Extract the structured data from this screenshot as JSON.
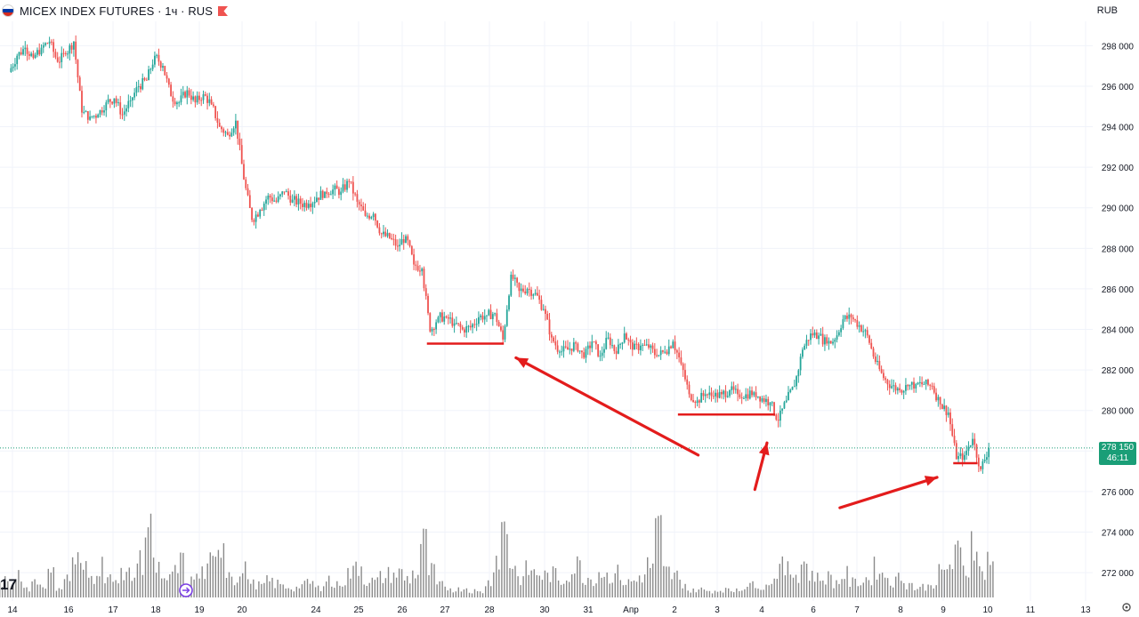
{
  "header": {
    "title": "MICEX INDEX FUTURES · 1ч · RUS",
    "currency": "RUB"
  },
  "price_tag": {
    "price": "278 150",
    "countdown": "46:11"
  },
  "logo_text": "17",
  "settings_icon": "gear-icon",
  "colors": {
    "up": "#26a69a",
    "down": "#ef5350",
    "volume": "#8a8a8a",
    "annotation": "#e31c1c",
    "last_price": "#1a9e77"
  },
  "chart_data": {
    "type": "candlestick",
    "title": "MICEX INDEX FUTURES · 1ч · RUS",
    "y_axis": {
      "range": [
        270600,
        299200
      ],
      "ticks": [
        272000,
        274000,
        276000,
        278000,
        280000,
        282000,
        284000,
        286000,
        288000,
        290000,
        292000,
        294000,
        296000,
        298000
      ],
      "tick_labels": [
        "272 000",
        "274 000",
        "276 000",
        "278 000",
        "280 000",
        "282 000",
        "284 000",
        "286 000",
        "288 000",
        "290 000",
        "292 000",
        "294 000",
        "296 000",
        "298 000"
      ]
    },
    "x_axis": {
      "labels": [
        "14",
        "16",
        "17",
        "18",
        "19",
        "20",
        "24",
        "25",
        "26",
        "27",
        "28",
        "30",
        "31",
        "Апр",
        "2",
        "3",
        "4",
        "6",
        "7",
        "8",
        "9",
        "10",
        "11",
        "13"
      ]
    },
    "last_price": 278150,
    "grid": true,
    "price_path": [
      [
        0,
        296700
      ],
      [
        2,
        297500
      ],
      [
        3,
        297900
      ],
      [
        4,
        297400
      ],
      [
        5,
        297900
      ],
      [
        6,
        298200
      ],
      [
        7,
        297200
      ],
      [
        8,
        297600
      ],
      [
        9,
        298200
      ],
      [
        10,
        294700
      ],
      [
        11,
        294500
      ],
      [
        12,
        294600
      ],
      [
        13,
        295200
      ],
      [
        14,
        295400
      ],
      [
        15,
        294600
      ],
      [
        16,
        295300
      ],
      [
        17,
        296000
      ],
      [
        18,
        296300
      ],
      [
        19,
        297500
      ],
      [
        20,
        297000
      ],
      [
        21,
        295500
      ],
      [
        22,
        295200
      ],
      [
        23,
        295800
      ],
      [
        24,
        295200
      ],
      [
        25,
        295600
      ],
      [
        26,
        295100
      ],
      [
        27,
        294000
      ],
      [
        28,
        293600
      ],
      [
        29,
        294300
      ],
      [
        30,
        291400
      ],
      [
        31,
        289400
      ],
      [
        32,
        289900
      ],
      [
        33,
        290600
      ],
      [
        34,
        290300
      ],
      [
        35,
        290800
      ],
      [
        36,
        290400
      ],
      [
        37,
        290200
      ],
      [
        38,
        290200
      ],
      [
        39,
        290500
      ],
      [
        40,
        290800
      ],
      [
        41,
        290900
      ],
      [
        42,
        290800
      ],
      [
        43,
        291300
      ],
      [
        44,
        290300
      ],
      [
        45,
        289600
      ],
      [
        46,
        289700
      ],
      [
        47,
        288700
      ],
      [
        48,
        288500
      ],
      [
        49,
        288100
      ],
      [
        50,
        288600
      ],
      [
        51,
        287200
      ],
      [
        52,
        287000
      ],
      [
        53,
        283900
      ],
      [
        54,
        284600
      ],
      [
        55,
        284600
      ],
      [
        56,
        284300
      ],
      [
        57,
        284000
      ],
      [
        58,
        284100
      ],
      [
        59,
        284600
      ],
      [
        60,
        284700
      ],
      [
        61,
        284800
      ],
      [
        62,
        283500
      ],
      [
        63,
        286700
      ],
      [
        64,
        285900
      ],
      [
        65,
        286000
      ],
      [
        66,
        285800
      ],
      [
        67,
        285000
      ],
      [
        68,
        283600
      ],
      [
        69,
        282900
      ],
      [
        70,
        283000
      ],
      [
        71,
        283300
      ],
      [
        72,
        282600
      ],
      [
        73,
        283400
      ],
      [
        74,
        282700
      ],
      [
        75,
        283600
      ],
      [
        76,
        282800
      ],
      [
        77,
        283800
      ],
      [
        78,
        283000
      ],
      [
        79,
        283200
      ],
      [
        80,
        283100
      ],
      [
        81,
        282700
      ],
      [
        82,
        282900
      ],
      [
        83,
        283400
      ],
      [
        84,
        282300
      ],
      [
        85,
        280800
      ],
      [
        86,
        280500
      ],
      [
        87,
        280800
      ],
      [
        88,
        280700
      ],
      [
        89,
        280800
      ],
      [
        90,
        281000
      ],
      [
        91,
        280800
      ],
      [
        92,
        280800
      ],
      [
        93,
        280900
      ],
      [
        94,
        280600
      ],
      [
        95,
        280400
      ],
      [
        96,
        279500
      ],
      [
        97,
        280500
      ],
      [
        98,
        281200
      ],
      [
        99,
        283000
      ],
      [
        100,
        283800
      ],
      [
        101,
        283700
      ],
      [
        102,
        283300
      ],
      [
        103,
        283500
      ],
      [
        104,
        284500
      ],
      [
        105,
        284600
      ],
      [
        106,
        284200
      ],
      [
        107,
        283700
      ],
      [
        108,
        282400
      ],
      [
        109,
        281600
      ],
      [
        110,
        281200
      ],
      [
        111,
        281000
      ],
      [
        112,
        281200
      ],
      [
        113,
        281300
      ],
      [
        114,
        281300
      ],
      [
        115,
        281200
      ],
      [
        116,
        280300
      ],
      [
        117,
        279900
      ],
      [
        118,
        277600
      ],
      [
        119,
        277800
      ],
      [
        120,
        278600
      ],
      [
        121,
        277100
      ],
      [
        122,
        278150
      ]
    ],
    "volume": [
      [
        0,
        0.6
      ],
      [
        1,
        0.45
      ],
      [
        2,
        0.95
      ],
      [
        3,
        0.35
      ],
      [
        4,
        0.6
      ],
      [
        5,
        0.5
      ],
      [
        6,
        0.85
      ],
      [
        7,
        0.4
      ],
      [
        8,
        0.7
      ],
      [
        9,
        1.4
      ],
      [
        10,
        1.05
      ],
      [
        11,
        0.75
      ],
      [
        12,
        1.2
      ],
      [
        13,
        0.85
      ],
      [
        14,
        0.5
      ],
      [
        15,
        1.05
      ],
      [
        16,
        0.8
      ],
      [
        17,
        1.35
      ],
      [
        18,
        2.75
      ],
      [
        19,
        1.1
      ],
      [
        20,
        0.55
      ],
      [
        21,
        0.9
      ],
      [
        22,
        1.3
      ],
      [
        23,
        0.6
      ],
      [
        24,
        0.75
      ],
      [
        25,
        0.95
      ],
      [
        26,
        1.25
      ],
      [
        27,
        2.2
      ],
      [
        28,
        1.0
      ],
      [
        29,
        0.7
      ],
      [
        30,
        1.0
      ],
      [
        31,
        0.5
      ],
      [
        32,
        0.45
      ],
      [
        33,
        0.6
      ],
      [
        34,
        0.5
      ],
      [
        35,
        0.4
      ],
      [
        36,
        0.35
      ],
      [
        37,
        0.45
      ],
      [
        38,
        0.55
      ],
      [
        39,
        0.35
      ],
      [
        40,
        0.7
      ],
      [
        41,
        0.45
      ],
      [
        42,
        0.6
      ],
      [
        43,
        0.9
      ],
      [
        44,
        1.2
      ],
      [
        45,
        0.65
      ],
      [
        46,
        0.6
      ],
      [
        47,
        0.75
      ],
      [
        48,
        0.85
      ],
      [
        49,
        0.9
      ],
      [
        50,
        0.7
      ],
      [
        51,
        0.9
      ],
      [
        52,
        2.0
      ],
      [
        53,
        0.95
      ],
      [
        54,
        0.45
      ],
      [
        55,
        0.35
      ],
      [
        56,
        0.3
      ],
      [
        57,
        0.35
      ],
      [
        58,
        0.25
      ],
      [
        59,
        0.2
      ],
      [
        60,
        0.55
      ],
      [
        61,
        1.5
      ],
      [
        62,
        2.6
      ],
      [
        63,
        1.25
      ],
      [
        64,
        0.7
      ],
      [
        65,
        1.0
      ],
      [
        66,
        0.9
      ],
      [
        67,
        0.8
      ],
      [
        68,
        0.85
      ],
      [
        69,
        0.6
      ],
      [
        70,
        0.9
      ],
      [
        71,
        1.2
      ],
      [
        72,
        0.75
      ],
      [
        73,
        0.7
      ],
      [
        74,
        0.95
      ],
      [
        75,
        0.8
      ],
      [
        76,
        0.9
      ],
      [
        77,
        0.55
      ],
      [
        78,
        0.6
      ],
      [
        79,
        0.8
      ],
      [
        80,
        1.2
      ],
      [
        81,
        2.45
      ],
      [
        82,
        0.95
      ],
      [
        83,
        0.8
      ],
      [
        84,
        0.55
      ],
      [
        85,
        0.25
      ],
      [
        86,
        0.3
      ],
      [
        87,
        0.25
      ],
      [
        88,
        0.25
      ],
      [
        89,
        0.3
      ],
      [
        90,
        0.25
      ],
      [
        91,
        0.35
      ],
      [
        92,
        0.4
      ],
      [
        93,
        0.55
      ],
      [
        94,
        0.4
      ],
      [
        95,
        0.65
      ],
      [
        96,
        1.1
      ],
      [
        97,
        1.0
      ],
      [
        98,
        0.9
      ],
      [
        99,
        1.3
      ],
      [
        100,
        0.85
      ],
      [
        101,
        0.7
      ],
      [
        102,
        0.75
      ],
      [
        103,
        0.55
      ],
      [
        104,
        0.85
      ],
      [
        105,
        0.55
      ],
      [
        106,
        0.6
      ],
      [
        107,
        0.7
      ],
      [
        108,
        1.1
      ],
      [
        109,
        0.8
      ],
      [
        110,
        0.6
      ],
      [
        111,
        0.75
      ],
      [
        112,
        0.5
      ],
      [
        113,
        0.35
      ],
      [
        114,
        0.4
      ],
      [
        115,
        0.55
      ],
      [
        116,
        0.9
      ],
      [
        117,
        1.2
      ],
      [
        118,
        1.6
      ],
      [
        119,
        1.0
      ],
      [
        120,
        2.3
      ],
      [
        121,
        0.95
      ],
      [
        122,
        1.45
      ]
    ],
    "annotations": {
      "support_lines": [
        {
          "y": 283300,
          "x_range": [
            52.5,
            62
          ]
        },
        {
          "y": 279800,
          "x_range": [
            83.5,
            95.5
          ]
        },
        {
          "y": 277400,
          "x_range": [
            117.5,
            120.5
          ]
        }
      ],
      "arrows": [
        {
          "from": [
            86,
            277800
          ],
          "to": [
            63.5,
            282600
          ]
        },
        {
          "from": [
            93,
            276100
          ],
          "to": [
            94.5,
            278400
          ]
        },
        {
          "from": [
            103.5,
            275200
          ],
          "to": [
            115.5,
            276700
          ]
        }
      ]
    }
  }
}
